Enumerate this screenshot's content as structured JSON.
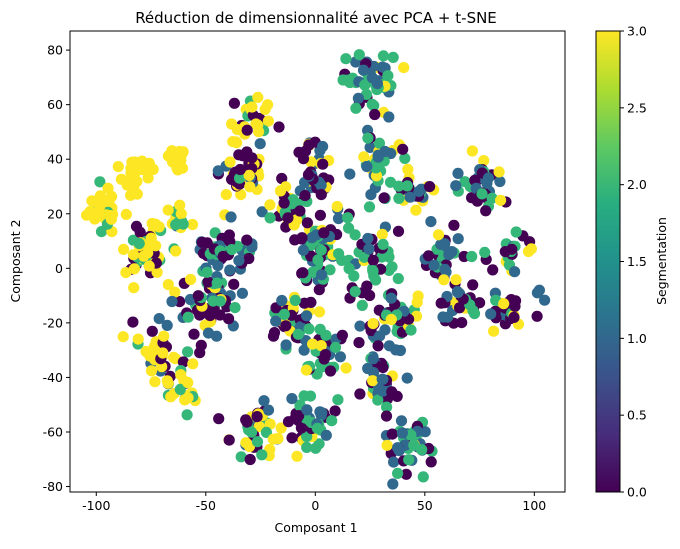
{
  "chart_data": {
    "type": "scatter",
    "title": "Réduction de dimensionnalité avec PCA + t-SNE",
    "xlabel": "Composant 1",
    "ylabel": "Composant 2",
    "xlim": [
      -112,
      114
    ],
    "ylim": [
      -82,
      87
    ],
    "xticks": [
      -100,
      -50,
      0,
      50,
      100
    ],
    "yticks": [
      -80,
      -60,
      -40,
      -20,
      0,
      20,
      40,
      60,
      80
    ],
    "grid": false,
    "colormap": "viridis",
    "colorbar": {
      "label": "Segmentation",
      "range": [
        0.0,
        3.0
      ],
      "ticks": [
        "0.0",
        "0.5",
        "1.0",
        "1.5",
        "2.0",
        "2.5",
        "3.0"
      ]
    },
    "clusters": [
      {
        "cx": -97,
        "cy": 22,
        "rx": 6,
        "ry": 8,
        "n": 30,
        "mix": [
          0,
          0,
          0.1,
          0.9
        ]
      },
      {
        "cx": -83,
        "cy": 34,
        "rx": 8,
        "ry": 5,
        "n": 25,
        "mix": [
          0,
          0,
          0,
          1
        ]
      },
      {
        "cx": -78,
        "cy": 6,
        "rx": 9,
        "ry": 9,
        "n": 50,
        "mix": [
          0.15,
          0.05,
          0.15,
          0.65
        ]
      },
      {
        "cx": -62,
        "cy": 40,
        "rx": 5,
        "ry": 6,
        "n": 14,
        "mix": [
          0,
          0,
          0.05,
          0.95
        ]
      },
      {
        "cx": -63,
        "cy": 20,
        "rx": 4,
        "ry": 6,
        "n": 12,
        "mix": [
          0.05,
          0.1,
          0.45,
          0.4
        ]
      },
      {
        "cx": -71,
        "cy": -32,
        "rx": 8,
        "ry": 10,
        "n": 40,
        "mix": [
          0.2,
          0.1,
          0.2,
          0.5
        ]
      },
      {
        "cx": -59,
        "cy": -45,
        "rx": 5,
        "ry": 6,
        "n": 18,
        "mix": [
          0.1,
          0.05,
          0.15,
          0.7
        ]
      },
      {
        "cx": -50,
        "cy": -12,
        "rx": 12,
        "ry": 12,
        "n": 60,
        "mix": [
          0.4,
          0.2,
          0.25,
          0.15
        ]
      },
      {
        "cx": -43,
        "cy": 5,
        "rx": 12,
        "ry": 7,
        "n": 45,
        "mix": [
          0.45,
          0.2,
          0.2,
          0.15
        ]
      },
      {
        "cx": -35,
        "cy": 35,
        "rx": 10,
        "ry": 9,
        "n": 45,
        "mix": [
          0.35,
          0.1,
          0.15,
          0.4
        ]
      },
      {
        "cx": -28,
        "cy": 55,
        "rx": 8,
        "ry": 7,
        "n": 30,
        "mix": [
          0.2,
          0.05,
          0.15,
          0.6
        ]
      },
      {
        "cx": -27,
        "cy": -60,
        "rx": 10,
        "ry": 8,
        "n": 40,
        "mix": [
          0.35,
          0.2,
          0.2,
          0.25
        ]
      },
      {
        "cx": -5,
        "cy": -55,
        "rx": 10,
        "ry": 10,
        "n": 55,
        "mix": [
          0.4,
          0.2,
          0.3,
          0.1
        ]
      },
      {
        "cx": -12,
        "cy": -20,
        "rx": 10,
        "ry": 8,
        "n": 40,
        "mix": [
          0.5,
          0.15,
          0.25,
          0.1
        ]
      },
      {
        "cx": 2,
        "cy": 5,
        "rx": 8,
        "ry": 12,
        "n": 50,
        "mix": [
          0.3,
          0.2,
          0.4,
          0.1
        ]
      },
      {
        "cx": 0,
        "cy": 35,
        "rx": 8,
        "ry": 14,
        "n": 45,
        "mix": [
          0.4,
          0.25,
          0.2,
          0.15
        ]
      },
      {
        "cx": -12,
        "cy": 20,
        "rx": 8,
        "ry": 8,
        "n": 30,
        "mix": [
          0.55,
          0.15,
          0.2,
          0.1
        ]
      },
      {
        "cx": 3,
        "cy": -30,
        "rx": 8,
        "ry": 8,
        "n": 30,
        "mix": [
          0.35,
          0.2,
          0.35,
          0.1
        ]
      },
      {
        "cx": 25,
        "cy": 68,
        "rx": 12,
        "ry": 9,
        "n": 50,
        "mix": [
          0.1,
          0.2,
          0.6,
          0.1
        ]
      },
      {
        "cx": 30,
        "cy": 40,
        "rx": 8,
        "ry": 12,
        "n": 35,
        "mix": [
          0.15,
          0.25,
          0.45,
          0.15
        ]
      },
      {
        "cx": 25,
        "cy": 5,
        "rx": 10,
        "ry": 14,
        "n": 50,
        "mix": [
          0.3,
          0.2,
          0.45,
          0.05
        ]
      },
      {
        "cx": 35,
        "cy": -20,
        "rx": 12,
        "ry": 10,
        "n": 45,
        "mix": [
          0.3,
          0.25,
          0.3,
          0.15
        ]
      },
      {
        "cx": 30,
        "cy": -42,
        "rx": 8,
        "ry": 10,
        "n": 35,
        "mix": [
          0.25,
          0.3,
          0.35,
          0.1
        ]
      },
      {
        "cx": 43,
        "cy": -65,
        "rx": 10,
        "ry": 8,
        "n": 45,
        "mix": [
          0.25,
          0.35,
          0.35,
          0.05
        ]
      },
      {
        "cx": 45,
        "cy": 28,
        "rx": 8,
        "ry": 5,
        "n": 25,
        "mix": [
          0.3,
          0.15,
          0.35,
          0.2
        ]
      },
      {
        "cx": 58,
        "cy": 5,
        "rx": 8,
        "ry": 9,
        "n": 30,
        "mix": [
          0.3,
          0.3,
          0.25,
          0.15
        ]
      },
      {
        "cx": 78,
        "cy": 30,
        "rx": 9,
        "ry": 9,
        "n": 35,
        "mix": [
          0.35,
          0.3,
          0.2,
          0.15
        ]
      },
      {
        "cx": 90,
        "cy": 8,
        "rx": 8,
        "ry": 6,
        "n": 20,
        "mix": [
          0.3,
          0.35,
          0.25,
          0.1
        ]
      },
      {
        "cx": 85,
        "cy": -15,
        "rx": 15,
        "ry": 6,
        "n": 40,
        "mix": [
          0.35,
          0.3,
          0.15,
          0.2
        ]
      },
      {
        "cx": 65,
        "cy": -12,
        "rx": 8,
        "ry": 8,
        "n": 25,
        "mix": [
          0.3,
          0.3,
          0.2,
          0.2
        ]
      }
    ]
  }
}
